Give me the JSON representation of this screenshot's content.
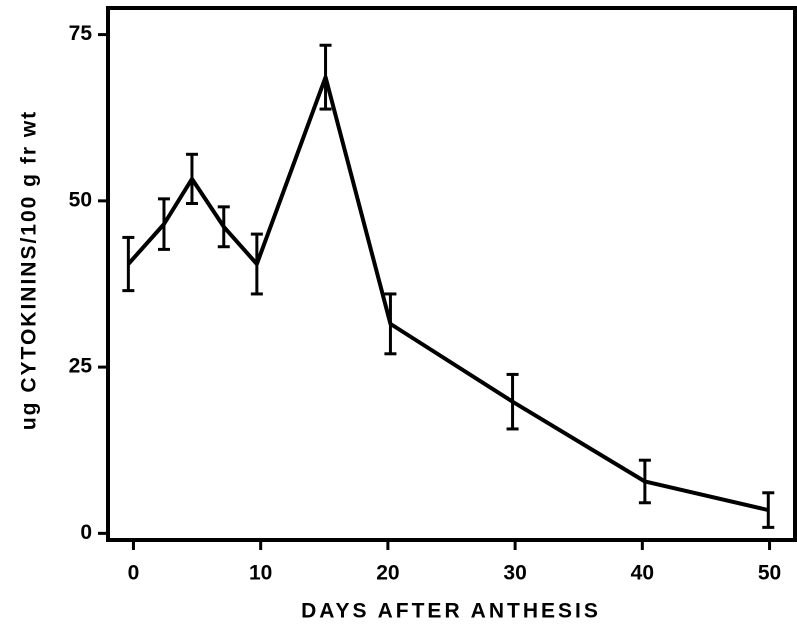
{
  "chart_data": {
    "type": "line",
    "xlabel": "DAYS AFTER ANTHESIS",
    "ylabel": "ug CYTOKININS/100 g fr wt",
    "x": [
      -0.4,
      2.4,
      4.6,
      7.1,
      9.7,
      15.1,
      20.2,
      29.8,
      40.2,
      49.9
    ],
    "values": [
      40.5,
      46.5,
      53.3,
      46.1,
      40.5,
      68.6,
      31.5,
      19.8,
      7.8,
      3.5
    ],
    "errors": [
      4,
      3.8,
      3.7,
      3,
      4.5,
      4.8,
      4.5,
      4.1,
      3.2,
      2.6
    ],
    "color": "#000000",
    "xlim": [
      -2,
      52
    ],
    "ylim": [
      -1,
      79
    ],
    "xticks": [
      0,
      10,
      20,
      30,
      40,
      50
    ],
    "yticks": [
      0,
      25,
      50,
      75
    ]
  }
}
